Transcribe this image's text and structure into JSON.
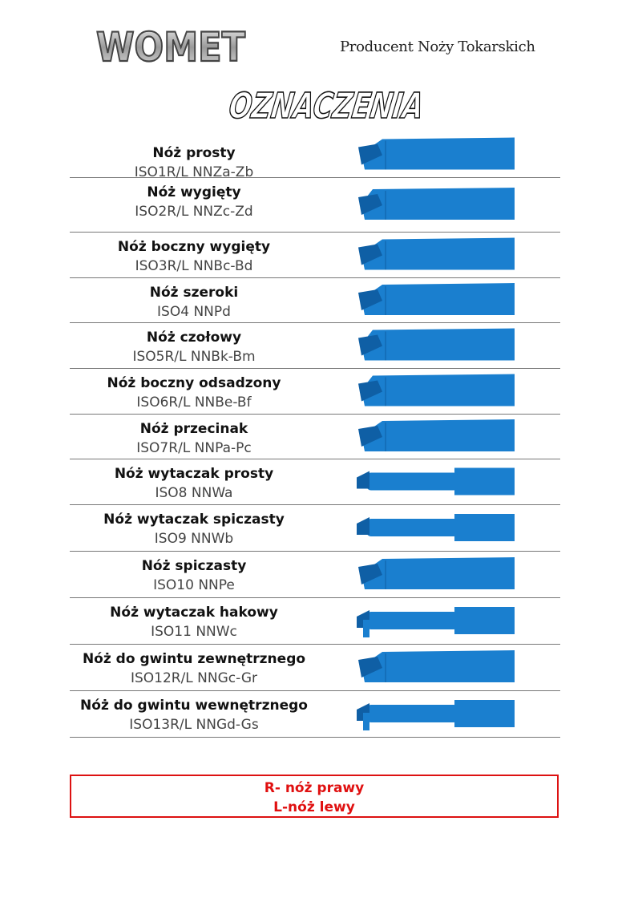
{
  "header": {
    "logo_text": "WOMET",
    "tagline": "Producent Noży Tokarskich",
    "title": "OZNACZENIA"
  },
  "tools": [
    {
      "name": "Nóż prosty",
      "code": "ISO1R/L NNZa-Zb",
      "shape": "straight"
    },
    {
      "name": "Nóż wygięty",
      "code": "ISO2R/L NNZc-Zd",
      "shape": "bent"
    },
    {
      "name": "Nóż boczny wygięty",
      "code": "ISO3R/L NNBc-Bd",
      "shape": "straight"
    },
    {
      "name": "Nóż szeroki",
      "code": "ISO4 NNPd",
      "shape": "straight"
    },
    {
      "name": "Nóż czołowy",
      "code": "ISO5R/L NNBk-Bm",
      "shape": "bent"
    },
    {
      "name": "Nóż boczny odsadzony",
      "code": "ISO6R/L NNBe-Bf",
      "shape": "bent"
    },
    {
      "name": "Nóż przecinak",
      "code": "ISO7R/L NNPa-Pc",
      "shape": "straight"
    },
    {
      "name": "Nóż wytaczak prosty",
      "code": "ISO8 NNWa",
      "shape": "boring"
    },
    {
      "name": "Nóż wytaczak spiczasty",
      "code": "ISO9 NNWb",
      "shape": "boring"
    },
    {
      "name": "Nóż spiczasty",
      "code": "ISO10 NNPe",
      "shape": "straight"
    },
    {
      "name": "Nóż wytaczak hakowy",
      "code": "ISO11 NNWc",
      "shape": "hook"
    },
    {
      "name": "Nóż do gwintu zewnętrznego",
      "code": "ISO12R/L  NNGc-Gr",
      "shape": "straight"
    },
    {
      "name": "Nóż do gwintu wewnętrznego",
      "code": "ISO13R/L NNGd-Gs",
      "shape": "hook"
    }
  ],
  "legend": {
    "right": "R- nóż prawy",
    "left": "L-nóż lewy"
  },
  "colors": {
    "tool": "#1a7fcf",
    "tool_dark": "#0f5fa5",
    "legend": "#e01010"
  }
}
